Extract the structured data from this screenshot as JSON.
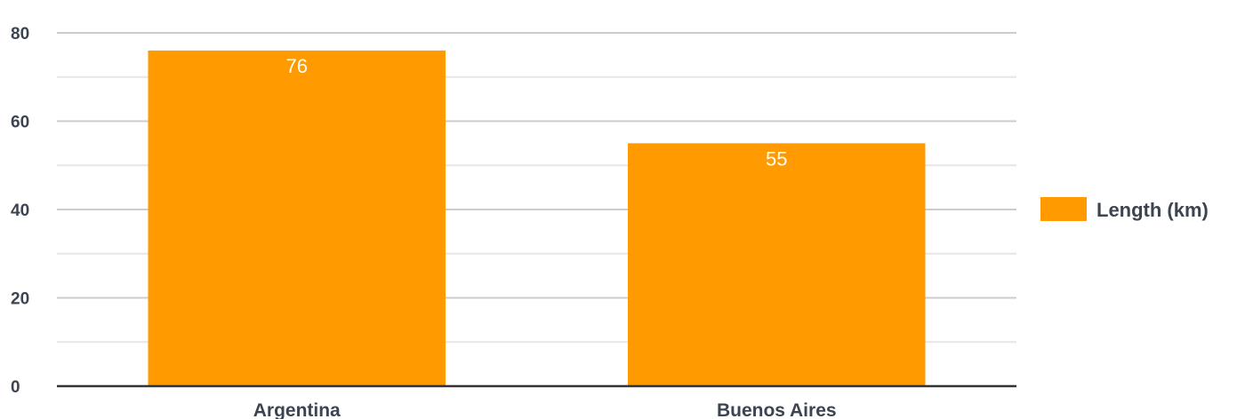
{
  "chart_data": {
    "type": "bar",
    "categories": [
      "Argentina",
      "Buenos Aires"
    ],
    "series": [
      {
        "name": "Length (km)",
        "values": [
          76,
          55
        ],
        "color": "#ff9a00"
      }
    ],
    "y_ticks": [
      "0",
      "20",
      "40",
      "60",
      "80"
    ],
    "data_labels": [
      "76",
      "55"
    ],
    "ylim": [
      0,
      80
    ],
    "title": "",
    "xlabel": "",
    "ylabel": "",
    "grid": true,
    "legend_position": "right",
    "colors": {
      "bar": "#ff9a00",
      "major_grid": "#cccccc",
      "minor_grid": "#e6e6e6",
      "axis": "#333333",
      "text": "#3d4451",
      "data_label": "#ffffff"
    }
  }
}
